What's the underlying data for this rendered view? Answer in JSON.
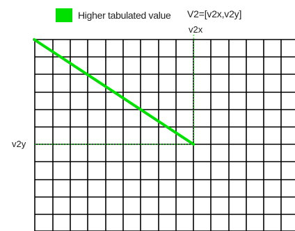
{
  "legend": {
    "swatch_color": "#00e000",
    "label": "Higher tabulated value"
  },
  "vector_label": "V2=[v2x,v2y]",
  "axis": {
    "x_label": "v2x",
    "y_label": "v2y"
  },
  "colors": {
    "grid": "#000000",
    "line": "#00e000",
    "guide": "#00e000"
  }
}
